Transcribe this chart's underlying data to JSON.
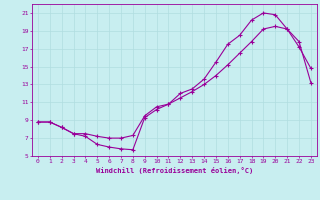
{
  "xlabel": "Windchill (Refroidissement éolien,°C)",
  "bg_color": "#c8eef0",
  "grid_color": "#b0dde0",
  "line_color": "#990099",
  "line1_x": [
    0,
    1,
    2,
    3,
    4,
    5,
    6,
    7,
    8,
    9,
    10,
    11,
    12,
    13,
    14,
    15,
    16,
    17,
    18,
    19,
    20,
    21,
    22,
    23
  ],
  "line1_y": [
    8.8,
    8.8,
    8.2,
    7.5,
    7.2,
    6.3,
    6.0,
    5.8,
    5.7,
    9.3,
    10.2,
    10.8,
    12.0,
    12.5,
    13.6,
    15.5,
    17.5,
    18.5,
    20.2,
    21.0,
    20.8,
    19.2,
    17.2,
    14.8
  ],
  "line2_x": [
    0,
    1,
    2,
    3,
    4,
    5,
    6,
    7,
    8,
    9,
    10,
    11,
    12,
    13,
    14,
    15,
    16,
    17,
    18,
    19,
    20,
    21,
    22,
    23
  ],
  "line2_y": [
    8.8,
    8.8,
    8.2,
    7.5,
    7.5,
    7.2,
    7.0,
    7.0,
    7.3,
    9.5,
    10.5,
    10.8,
    11.5,
    12.2,
    13.0,
    14.0,
    15.2,
    16.5,
    17.8,
    19.2,
    19.5,
    19.2,
    17.8,
    13.2
  ],
  "xlim": [
    -0.5,
    23.5
  ],
  "ylim": [
    5,
    22
  ],
  "xticks": [
    0,
    1,
    2,
    3,
    4,
    5,
    6,
    7,
    8,
    9,
    10,
    11,
    12,
    13,
    14,
    15,
    16,
    17,
    18,
    19,
    20,
    21,
    22,
    23
  ],
  "yticks": [
    5,
    7,
    9,
    11,
    13,
    15,
    17,
    19,
    21
  ]
}
